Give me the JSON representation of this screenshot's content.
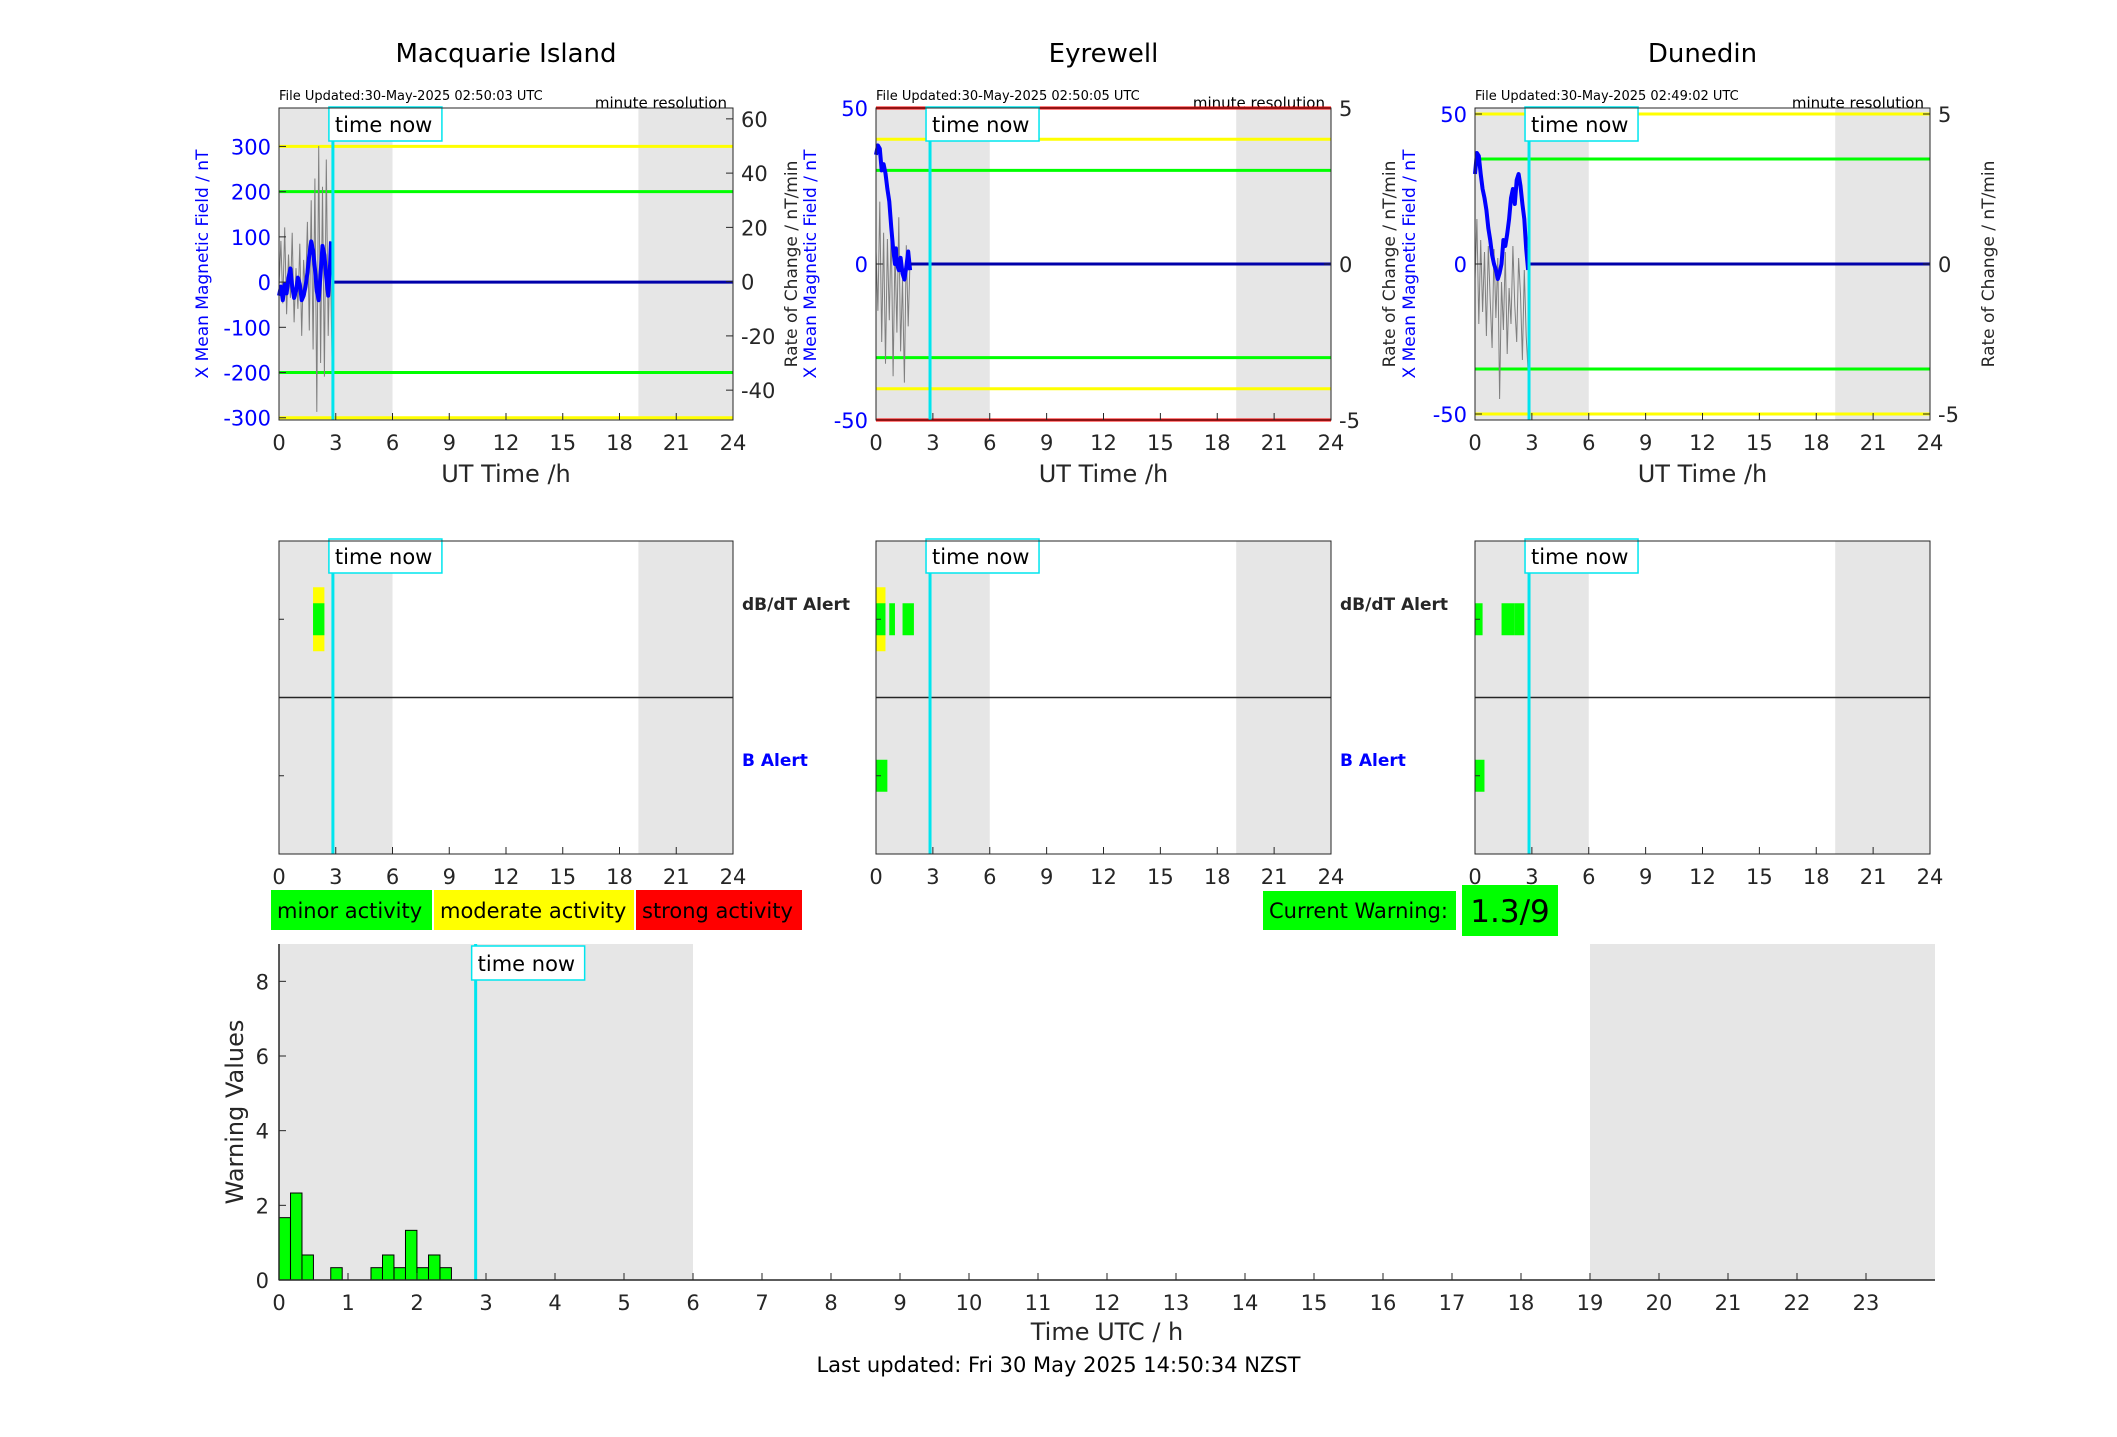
{
  "sites": [
    {
      "name": "Macquarie Island",
      "file_updated": "File Updated:30-May-2025 02:50:03 UTC",
      "resolution": "minute resolution",
      "ylabel_left": "X Mean Magnetic Field / nT",
      "ylabel_right": "Rate of Change / nT/min",
      "yticks_left": [
        "300",
        "200",
        "100",
        "0",
        "-100",
        "-200",
        "-300"
      ],
      "yticks_left_values": [
        300,
        200,
        100,
        0,
        -100,
        -200,
        -300
      ],
      "ylim_left": [
        -305,
        385
      ],
      "yticks_right": [
        "60",
        "40",
        "20",
        "0",
        "-20",
        "-40"
      ],
      "yticks_right_values": [
        60,
        40,
        20,
        0,
        -20,
        -40
      ],
      "ylim_right": [
        -51,
        64
      ],
      "thresholds": [
        {
          "value": 300,
          "color": "#ffff00"
        },
        {
          "value": 200,
          "color": "#00ff00"
        },
        {
          "value": -200,
          "color": "#00ff00"
        },
        {
          "value": -300,
          "color": "#ffff00"
        }
      ],
      "bx_series": [
        [
          0.0,
          -30
        ],
        [
          0.1,
          -10
        ],
        [
          0.2,
          -40
        ],
        [
          0.3,
          -5
        ],
        [
          0.4,
          -25
        ],
        [
          0.5,
          10
        ],
        [
          0.6,
          30
        ],
        [
          0.7,
          -10
        ],
        [
          0.8,
          -35
        ],
        [
          0.9,
          -20
        ],
        [
          1.0,
          10
        ],
        [
          1.1,
          -5
        ],
        [
          1.2,
          -40
        ],
        [
          1.3,
          -30
        ],
        [
          1.4,
          -10
        ],
        [
          1.5,
          20
        ],
        [
          1.6,
          60
        ],
        [
          1.7,
          90
        ],
        [
          1.8,
          70
        ],
        [
          1.9,
          30
        ],
        [
          2.0,
          -20
        ],
        [
          2.1,
          -40
        ],
        [
          2.2,
          20
        ],
        [
          2.3,
          80
        ],
        [
          2.4,
          60
        ],
        [
          2.5,
          10
        ],
        [
          2.6,
          -30
        ],
        [
          2.7,
          40
        ],
        [
          2.75,
          90
        ]
      ],
      "bx_flat_from": 2.85,
      "db_series": [
        [
          0.0,
          -2
        ],
        [
          0.1,
          15
        ],
        [
          0.2,
          -8
        ],
        [
          0.3,
          20
        ],
        [
          0.4,
          -12
        ],
        [
          0.5,
          10
        ],
        [
          0.6,
          -6
        ],
        [
          0.7,
          18
        ],
        [
          0.8,
          -15
        ],
        [
          0.9,
          5
        ],
        [
          1.0,
          -10
        ],
        [
          1.1,
          14
        ],
        [
          1.2,
          -20
        ],
        [
          1.3,
          8
        ],
        [
          1.4,
          -5
        ],
        [
          1.5,
          22
        ],
        [
          1.6,
          -18
        ],
        [
          1.7,
          30
        ],
        [
          1.8,
          -25
        ],
        [
          1.9,
          38
        ],
        [
          2.0,
          -48
        ],
        [
          2.1,
          50
        ],
        [
          2.2,
          -30
        ],
        [
          2.3,
          35
        ],
        [
          2.4,
          -35
        ],
        [
          2.5,
          45
        ],
        [
          2.6,
          -20
        ],
        [
          2.7,
          15
        ],
        [
          2.8,
          -28
        ]
      ]
    },
    {
      "name": "Eyrewell",
      "file_updated": "File Updated:30-May-2025 02:50:05 UTC",
      "resolution": "minute resolution",
      "ylabel_left": "X Mean Magnetic Field / nT",
      "ylabel_right": "Rate of Change / nT/min",
      "yticks_left": [
        "50",
        "0",
        "-50"
      ],
      "yticks_left_values": [
        50,
        0,
        -50
      ],
      "ylim_left": [
        -50,
        50
      ],
      "yticks_right": [
        "5",
        "0",
        "-5"
      ],
      "yticks_right_values": [
        5,
        0,
        -5
      ],
      "ylim_right": [
        -5,
        5
      ],
      "thresholds": [
        {
          "value": 50,
          "color": "#ff0000"
        },
        {
          "value": 40,
          "color": "#ffff00"
        },
        {
          "value": 30,
          "color": "#00ff00"
        },
        {
          "value": -30,
          "color": "#00ff00"
        },
        {
          "value": -40,
          "color": "#ffff00"
        },
        {
          "value": -50,
          "color": "#ff0000"
        }
      ],
      "bx_series": [
        [
          0.0,
          35
        ],
        [
          0.1,
          38
        ],
        [
          0.2,
          37
        ],
        [
          0.3,
          30
        ],
        [
          0.4,
          32
        ],
        [
          0.5,
          29
        ],
        [
          0.6,
          24
        ],
        [
          0.7,
          20
        ],
        [
          0.8,
          12
        ],
        [
          0.9,
          5
        ],
        [
          1.0,
          0
        ],
        [
          1.05,
          5
        ],
        [
          1.1,
          0
        ],
        [
          1.2,
          -2
        ],
        [
          1.3,
          2
        ],
        [
          1.4,
          -3
        ],
        [
          1.5,
          -5
        ],
        [
          1.6,
          -1
        ],
        [
          1.7,
          4
        ],
        [
          1.8,
          -2
        ]
      ],
      "bx_flat_from": 1.85,
      "db_series": [
        [
          0.0,
          0.4
        ],
        [
          0.1,
          -1.5
        ],
        [
          0.2,
          2.0
        ],
        [
          0.3,
          -2.5
        ],
        [
          0.4,
          1.0
        ],
        [
          0.5,
          -3.2
        ],
        [
          0.6,
          0.8
        ],
        [
          0.7,
          -1.8
        ],
        [
          0.8,
          1.2
        ],
        [
          0.9,
          -3.6
        ],
        [
          1.0,
          0.5
        ],
        [
          1.1,
          -2.2
        ],
        [
          1.2,
          1.5
        ],
        [
          1.3,
          -2.8
        ],
        [
          1.4,
          -0.5
        ],
        [
          1.5,
          -3.8
        ],
        [
          1.6,
          0.6
        ],
        [
          1.7,
          -2.0
        ],
        [
          1.8,
          0.2
        ]
      ]
    },
    {
      "name": "Dunedin",
      "file_updated": "File Updated:30-May-2025 02:49:02 UTC",
      "resolution": "minute resolution",
      "ylabel_left": "X Mean Magnetic Field / nT",
      "ylabel_right": "Rate of Change / nT/min",
      "yticks_left": [
        "50",
        "0",
        "-50"
      ],
      "yticks_left_values": [
        50,
        0,
        -50
      ],
      "ylim_left": [
        -52,
        52
      ],
      "yticks_right": [
        "5",
        "0",
        "-5"
      ],
      "yticks_right_values": [
        5,
        0,
        -5
      ],
      "ylim_right": [
        -5.2,
        5.2
      ],
      "thresholds": [
        {
          "value": 50,
          "color": "#ffff00"
        },
        {
          "value": 35,
          "color": "#00ff00"
        },
        {
          "value": -35,
          "color": "#00ff00"
        },
        {
          "value": -50,
          "color": "#ffff00"
        }
      ],
      "bx_series": [
        [
          0.0,
          30
        ],
        [
          0.1,
          37
        ],
        [
          0.2,
          36
        ],
        [
          0.3,
          30
        ],
        [
          0.4,
          25
        ],
        [
          0.5,
          22
        ],
        [
          0.6,
          18
        ],
        [
          0.7,
          12
        ],
        [
          0.8,
          8
        ],
        [
          0.9,
          3
        ],
        [
          1.0,
          0
        ],
        [
          1.1,
          -2
        ],
        [
          1.2,
          -5
        ],
        [
          1.3,
          -3
        ],
        [
          1.4,
          0
        ],
        [
          1.5,
          8
        ],
        [
          1.6,
          6
        ],
        [
          1.7,
          10
        ],
        [
          1.8,
          15
        ],
        [
          1.9,
          22
        ],
        [
          2.0,
          25
        ],
        [
          2.1,
          20
        ],
        [
          2.2,
          28
        ],
        [
          2.3,
          30
        ],
        [
          2.4,
          26
        ],
        [
          2.5,
          20
        ],
        [
          2.6,
          15
        ],
        [
          2.7,
          5
        ],
        [
          2.8,
          -2
        ]
      ],
      "bx_flat_from": 2.85,
      "db_series": [
        [
          0.0,
          -0.5
        ],
        [
          0.1,
          1.5
        ],
        [
          0.2,
          -2.0
        ],
        [
          0.3,
          0.8
        ],
        [
          0.4,
          -1.6
        ],
        [
          0.5,
          0.4
        ],
        [
          0.6,
          -2.4
        ],
        [
          0.7,
          0.6
        ],
        [
          0.8,
          -1.2
        ],
        [
          0.9,
          -2.8
        ],
        [
          1.0,
          0.5
        ],
        [
          1.1,
          -1.8
        ],
        [
          1.2,
          0.2
        ],
        [
          1.3,
          -4.5
        ],
        [
          1.4,
          -0.6
        ],
        [
          1.5,
          -2.2
        ],
        [
          1.6,
          0.4
        ],
        [
          1.7,
          -3.0
        ],
        [
          1.8,
          -0.8
        ],
        [
          1.9,
          -2.0
        ],
        [
          2.0,
          0.6
        ],
        [
          2.1,
          -1.4
        ],
        [
          2.2,
          -2.6
        ],
        [
          2.3,
          0.2
        ],
        [
          2.4,
          -1.0
        ],
        [
          2.5,
          -3.2
        ],
        [
          2.6,
          -0.2
        ],
        [
          2.7,
          -2.4
        ],
        [
          2.8,
          -3.6
        ]
      ]
    }
  ],
  "time_now_label": "time now",
  "time_now_hour": 2.85,
  "top_xlabel": "UT Time /h",
  "top_xticks": [
    0,
    3,
    6,
    9,
    12,
    15,
    18,
    21,
    24
  ],
  "night_bands": [
    [
      0,
      6
    ],
    [
      19,
      24
    ]
  ],
  "alert_labels": {
    "dbdt": "dB/dT Alert",
    "b": "B Alert"
  },
  "alerts": [
    {
      "dbdt": [
        {
          "from": 1.8,
          "to": 2.4,
          "color": "#ffff00",
          "lane": "wide"
        },
        {
          "from": 1.8,
          "to": 2.4,
          "color": "#00ff00",
          "lane": "narrow"
        }
      ],
      "b": []
    },
    {
      "dbdt": [
        {
          "from": 0.0,
          "to": 0.5,
          "color": "#ffff00",
          "lane": "wide"
        },
        {
          "from": 0.0,
          "to": 0.5,
          "color": "#00ff00",
          "lane": "narrow"
        },
        {
          "from": 0.7,
          "to": 1.0,
          "color": "#00ff00",
          "lane": "narrow"
        },
        {
          "from": 1.4,
          "to": 2.0,
          "color": "#00ff00",
          "lane": "narrow"
        }
      ],
      "b": [
        {
          "from": 0.0,
          "to": 0.6,
          "color": "#00ff00",
          "lane": "narrow"
        }
      ]
    },
    {
      "dbdt": [
        {
          "from": 0.0,
          "to": 0.4,
          "color": "#00ff00",
          "lane": "narrow"
        },
        {
          "from": 1.4,
          "to": 2.1,
          "color": "#00ff00",
          "lane": "narrow"
        },
        {
          "from": 2.1,
          "to": 2.6,
          "color": "#00ff00",
          "lane": "narrow"
        }
      ],
      "b": [
        {
          "from": 0.0,
          "to": 0.5,
          "color": "#00ff00",
          "lane": "narrow"
        }
      ]
    }
  ],
  "legend": [
    {
      "label": "minor activity",
      "color": "#00ff00"
    },
    {
      "label": "moderate activity",
      "color": "#ffff00"
    },
    {
      "label": "strong activity",
      "color": "#ff0000"
    }
  ],
  "current_warning_label": "Current Warning:",
  "current_warning_value": "1.3/9",
  "chart_data": {
    "type": "bar",
    "xlabel": "Time UTC / h",
    "ylabel": "Warning Values",
    "xlim": [
      0,
      24
    ],
    "ylim": [
      0,
      9
    ],
    "xticks": [
      0,
      1,
      2,
      3,
      4,
      5,
      6,
      7,
      8,
      9,
      10,
      11,
      12,
      13,
      14,
      15,
      16,
      17,
      18,
      19,
      20,
      21,
      22,
      23
    ],
    "yticks": [
      0,
      2,
      4,
      6,
      8
    ],
    "bar_width_h": 0.166,
    "bars": [
      {
        "x": 0.0,
        "value": 1.67
      },
      {
        "x": 0.167,
        "value": 2.33
      },
      {
        "x": 0.333,
        "value": 0.67
      },
      {
        "x": 0.75,
        "value": 0.33
      },
      {
        "x": 1.333,
        "value": 0.33
      },
      {
        "x": 1.5,
        "value": 0.67
      },
      {
        "x": 1.667,
        "value": 0.33
      },
      {
        "x": 1.833,
        "value": 1.33
      },
      {
        "x": 2.0,
        "value": 0.33
      },
      {
        "x": 2.167,
        "value": 0.67
      },
      {
        "x": 2.333,
        "value": 0.33
      }
    ],
    "bar_color": "#00ff00",
    "night_bands": [
      [
        0,
        6
      ],
      [
        19,
        24
      ]
    ],
    "time_now_hour": 2.85
  },
  "last_updated": "Last updated: Fri 30 May 2025 14:50:34 NZST"
}
